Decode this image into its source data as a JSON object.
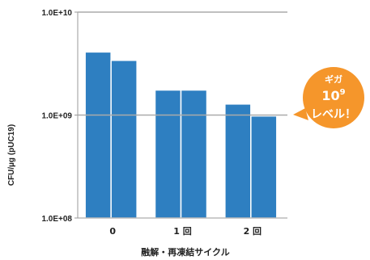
{
  "chart_data": {
    "type": "bar",
    "scale": "log",
    "ylim": [
      100000000,
      10000000000
    ],
    "yticks": [
      {
        "value": 100000000,
        "label": "1.0E+08"
      },
      {
        "value": 1000000000,
        "label": "1.0E+09"
      },
      {
        "value": 10000000000,
        "label": "1.0E+10"
      }
    ],
    "categories": [
      "0",
      "1 回",
      "2 回"
    ],
    "values": [
      [
        4100000000,
        3400000000
      ],
      [
        1750000000,
        1750000000
      ],
      [
        1280000000,
        980000000
      ]
    ],
    "ylabel": "CFU/µg (pUC19)",
    "xlabel": "融解・再凍結サイクル",
    "bar_color": "#2e7fc1",
    "grid": false,
    "annotation": {
      "line1": "ギガ",
      "line2_base": "10",
      "line2_exp": "9",
      "line3": "レベル！",
      "color": "#f5962b"
    }
  }
}
